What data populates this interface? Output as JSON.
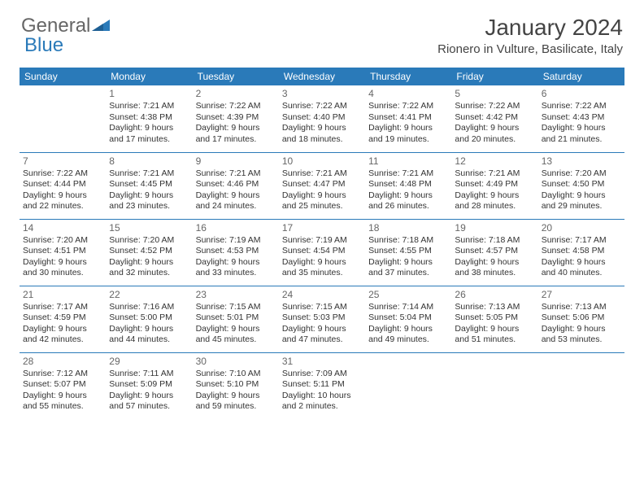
{
  "logo": {
    "text1": "General",
    "text2": "Blue"
  },
  "title": "January 2024",
  "location": "Rionero in Vulture, Basilicate, Italy",
  "colors": {
    "header_bg": "#2a7ab9",
    "header_text": "#ffffff",
    "row_border": "#2a7ab9",
    "logo_gray": "#666666",
    "logo_blue": "#2a7ab9",
    "body_text": "#333333",
    "daynum_text": "#666666",
    "page_bg": "#ffffff"
  },
  "fonts": {
    "title_size_pt": 21,
    "location_size_pt": 11,
    "weekday_size_pt": 9,
    "daynum_size_pt": 9,
    "body_size_pt": 8
  },
  "weekdays": [
    "Sunday",
    "Monday",
    "Tuesday",
    "Wednesday",
    "Thursday",
    "Friday",
    "Saturday"
  ],
  "weeks": [
    [
      null,
      {
        "n": "1",
        "sunrise": "7:21 AM",
        "sunset": "4:38 PM",
        "dl1": "Daylight: 9 hours",
        "dl2": "and 17 minutes."
      },
      {
        "n": "2",
        "sunrise": "7:22 AM",
        "sunset": "4:39 PM",
        "dl1": "Daylight: 9 hours",
        "dl2": "and 17 minutes."
      },
      {
        "n": "3",
        "sunrise": "7:22 AM",
        "sunset": "4:40 PM",
        "dl1": "Daylight: 9 hours",
        "dl2": "and 18 minutes."
      },
      {
        "n": "4",
        "sunrise": "7:22 AM",
        "sunset": "4:41 PM",
        "dl1": "Daylight: 9 hours",
        "dl2": "and 19 minutes."
      },
      {
        "n": "5",
        "sunrise": "7:22 AM",
        "sunset": "4:42 PM",
        "dl1": "Daylight: 9 hours",
        "dl2": "and 20 minutes."
      },
      {
        "n": "6",
        "sunrise": "7:22 AM",
        "sunset": "4:43 PM",
        "dl1": "Daylight: 9 hours",
        "dl2": "and 21 minutes."
      }
    ],
    [
      {
        "n": "7",
        "sunrise": "7:22 AM",
        "sunset": "4:44 PM",
        "dl1": "Daylight: 9 hours",
        "dl2": "and 22 minutes."
      },
      {
        "n": "8",
        "sunrise": "7:21 AM",
        "sunset": "4:45 PM",
        "dl1": "Daylight: 9 hours",
        "dl2": "and 23 minutes."
      },
      {
        "n": "9",
        "sunrise": "7:21 AM",
        "sunset": "4:46 PM",
        "dl1": "Daylight: 9 hours",
        "dl2": "and 24 minutes."
      },
      {
        "n": "10",
        "sunrise": "7:21 AM",
        "sunset": "4:47 PM",
        "dl1": "Daylight: 9 hours",
        "dl2": "and 25 minutes."
      },
      {
        "n": "11",
        "sunrise": "7:21 AM",
        "sunset": "4:48 PM",
        "dl1": "Daylight: 9 hours",
        "dl2": "and 26 minutes."
      },
      {
        "n": "12",
        "sunrise": "7:21 AM",
        "sunset": "4:49 PM",
        "dl1": "Daylight: 9 hours",
        "dl2": "and 28 minutes."
      },
      {
        "n": "13",
        "sunrise": "7:20 AM",
        "sunset": "4:50 PM",
        "dl1": "Daylight: 9 hours",
        "dl2": "and 29 minutes."
      }
    ],
    [
      {
        "n": "14",
        "sunrise": "7:20 AM",
        "sunset": "4:51 PM",
        "dl1": "Daylight: 9 hours",
        "dl2": "and 30 minutes."
      },
      {
        "n": "15",
        "sunrise": "7:20 AM",
        "sunset": "4:52 PM",
        "dl1": "Daylight: 9 hours",
        "dl2": "and 32 minutes."
      },
      {
        "n": "16",
        "sunrise": "7:19 AM",
        "sunset": "4:53 PM",
        "dl1": "Daylight: 9 hours",
        "dl2": "and 33 minutes."
      },
      {
        "n": "17",
        "sunrise": "7:19 AM",
        "sunset": "4:54 PM",
        "dl1": "Daylight: 9 hours",
        "dl2": "and 35 minutes."
      },
      {
        "n": "18",
        "sunrise": "7:18 AM",
        "sunset": "4:55 PM",
        "dl1": "Daylight: 9 hours",
        "dl2": "and 37 minutes."
      },
      {
        "n": "19",
        "sunrise": "7:18 AM",
        "sunset": "4:57 PM",
        "dl1": "Daylight: 9 hours",
        "dl2": "and 38 minutes."
      },
      {
        "n": "20",
        "sunrise": "7:17 AM",
        "sunset": "4:58 PM",
        "dl1": "Daylight: 9 hours",
        "dl2": "and 40 minutes."
      }
    ],
    [
      {
        "n": "21",
        "sunrise": "7:17 AM",
        "sunset": "4:59 PM",
        "dl1": "Daylight: 9 hours",
        "dl2": "and 42 minutes."
      },
      {
        "n": "22",
        "sunrise": "7:16 AM",
        "sunset": "5:00 PM",
        "dl1": "Daylight: 9 hours",
        "dl2": "and 44 minutes."
      },
      {
        "n": "23",
        "sunrise": "7:15 AM",
        "sunset": "5:01 PM",
        "dl1": "Daylight: 9 hours",
        "dl2": "and 45 minutes."
      },
      {
        "n": "24",
        "sunrise": "7:15 AM",
        "sunset": "5:03 PM",
        "dl1": "Daylight: 9 hours",
        "dl2": "and 47 minutes."
      },
      {
        "n": "25",
        "sunrise": "7:14 AM",
        "sunset": "5:04 PM",
        "dl1": "Daylight: 9 hours",
        "dl2": "and 49 minutes."
      },
      {
        "n": "26",
        "sunrise": "7:13 AM",
        "sunset": "5:05 PM",
        "dl1": "Daylight: 9 hours",
        "dl2": "and 51 minutes."
      },
      {
        "n": "27",
        "sunrise": "7:13 AM",
        "sunset": "5:06 PM",
        "dl1": "Daylight: 9 hours",
        "dl2": "and 53 minutes."
      }
    ],
    [
      {
        "n": "28",
        "sunrise": "7:12 AM",
        "sunset": "5:07 PM",
        "dl1": "Daylight: 9 hours",
        "dl2": "and 55 minutes."
      },
      {
        "n": "29",
        "sunrise": "7:11 AM",
        "sunset": "5:09 PM",
        "dl1": "Daylight: 9 hours",
        "dl2": "and 57 minutes."
      },
      {
        "n": "30",
        "sunrise": "7:10 AM",
        "sunset": "5:10 PM",
        "dl1": "Daylight: 9 hours",
        "dl2": "and 59 minutes."
      },
      {
        "n": "31",
        "sunrise": "7:09 AM",
        "sunset": "5:11 PM",
        "dl1": "Daylight: 10 hours",
        "dl2": "and 2 minutes."
      },
      null,
      null,
      null
    ]
  ],
  "labels": {
    "sunrise": "Sunrise: ",
    "sunset": "Sunset: "
  }
}
